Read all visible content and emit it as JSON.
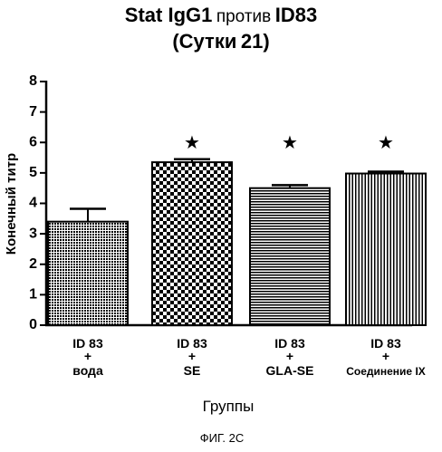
{
  "chart_data": {
    "type": "bar",
    "title": {
      "line1": {
        "part1": "Stat IgG1",
        "part2": "против",
        "part3": "ID83"
      },
      "line2": {
        "part1": "(Сутки",
        "part2": "21",
        "part3": ")"
      }
    },
    "xlabel": "Группы",
    "ylabel": "Конечный титр",
    "ylim": [
      0,
      8
    ],
    "yticks": [
      "0",
      "1",
      "2",
      "3",
      "4",
      "5",
      "6",
      "7",
      "8"
    ],
    "categories": [
      {
        "line1": "ID 83",
        "line2": "+",
        "line3": "вода"
      },
      {
        "line1": "ID 83",
        "line2": "+",
        "line3": "SE"
      },
      {
        "line1": "ID 83",
        "line2": "+",
        "line3": "GLA-SE"
      },
      {
        "line1": "ID 83",
        "line2": "+",
        "line3": "Соединение IX"
      }
    ],
    "values": [
      3.4,
      5.35,
      4.5,
      4.98
    ],
    "errors": [
      0.42,
      0.1,
      0.1,
      0.06
    ],
    "patterns": [
      "fine-dots",
      "checker",
      "horizontal-lines",
      "vertical-lines"
    ],
    "significance": [
      false,
      true,
      true,
      true
    ],
    "significance_symbol": "★",
    "grid": false,
    "legend": "none",
    "colors": {
      "ink": "#000000",
      "background": "#ffffff"
    }
  },
  "caption": "ФИГ. 2С"
}
